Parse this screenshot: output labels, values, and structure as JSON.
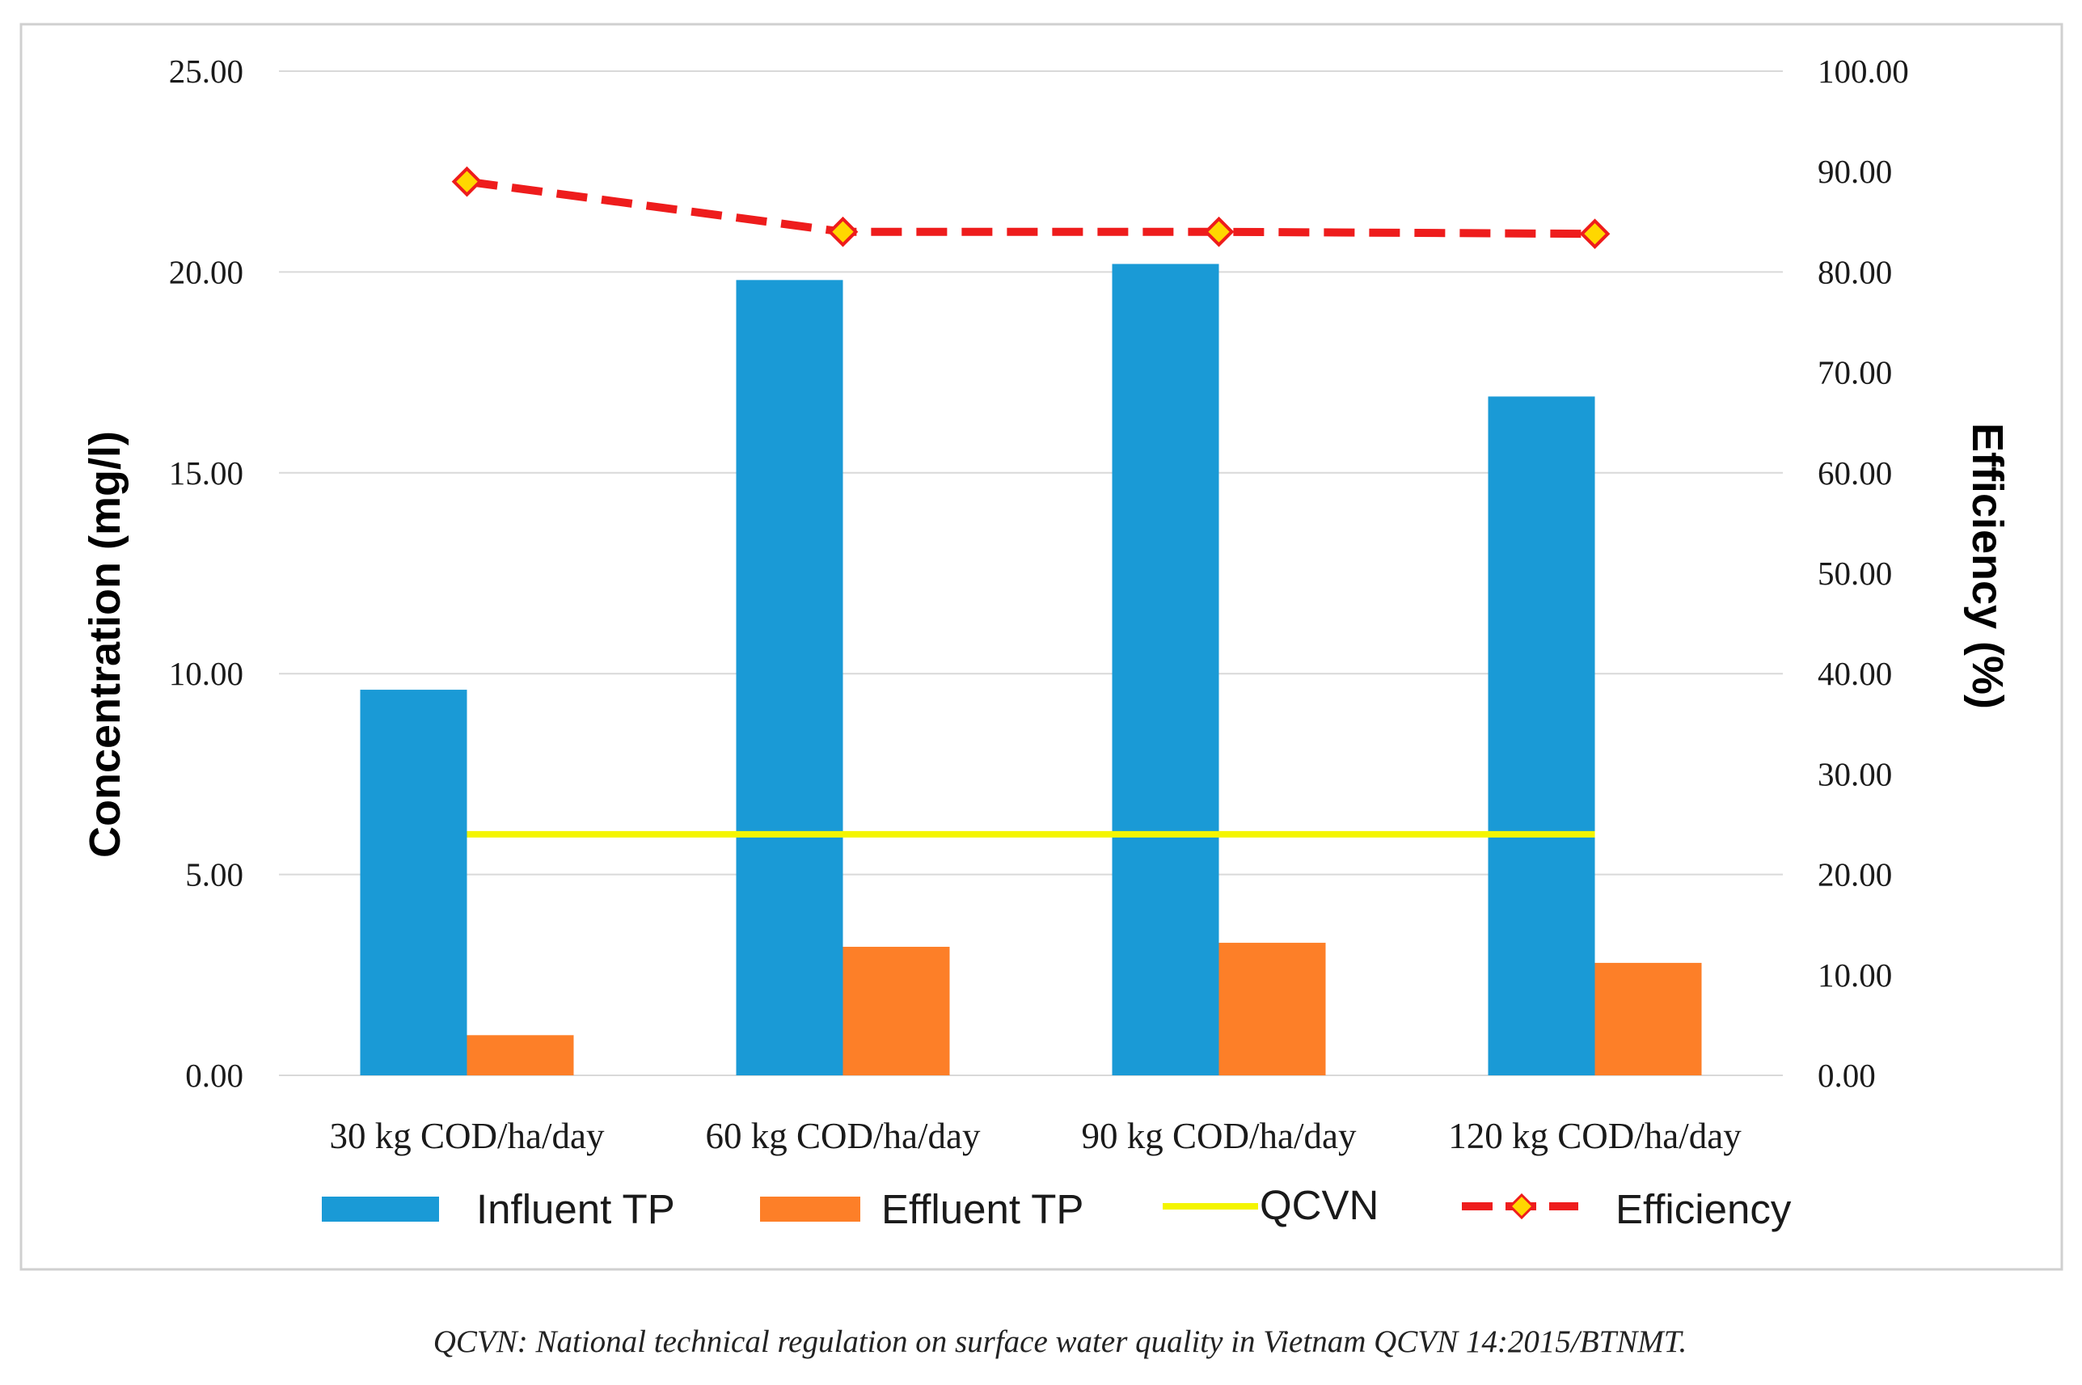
{
  "colors": {
    "influent": "#1a9ad6",
    "effluent": "#fd7f28",
    "qcvn": "#f4f500",
    "efficiency": "#ee1c1c",
    "marker": "#ffd700",
    "grid": "#d9d9d9",
    "frame": "#d0d0d0"
  },
  "chart_data": {
    "type": "bar",
    "categories": [
      "30 kg COD/ha/day",
      "60 kg COD/ha/day",
      "90 kg COD/ha/day",
      "120 kg COD/ha/day"
    ],
    "series": [
      {
        "name": "Influent TP",
        "kind": "bar",
        "axis": "left",
        "values": [
          9.6,
          19.8,
          20.2,
          16.9
        ]
      },
      {
        "name": "Effluent TP",
        "kind": "bar",
        "axis": "left",
        "values": [
          1.0,
          3.2,
          3.3,
          2.8
        ]
      },
      {
        "name": "QCVN",
        "kind": "line",
        "axis": "left",
        "values": [
          6.0,
          6.0,
          6.0,
          6.0
        ]
      },
      {
        "name": "Efficiency",
        "kind": "line-dashed-marker",
        "axis": "right",
        "values": [
          89.0,
          84.0,
          84.0,
          83.8
        ]
      }
    ],
    "ylabel": "Concentration (mg/l)",
    "y2label": "Efficiency (%)",
    "xlabel": "",
    "ylim": [
      0,
      25
    ],
    "y2lim": [
      0,
      100
    ],
    "yticks": [
      "0.00",
      "5.00",
      "10.00",
      "15.00",
      "20.00",
      "25.00"
    ],
    "y2ticks": [
      "0.00",
      "10.00",
      "20.00",
      "30.00",
      "40.00",
      "50.00",
      "60.00",
      "70.00",
      "80.00",
      "90.00",
      "100.00"
    ],
    "grid": true,
    "legend": "bottom"
  },
  "caption": "QCVN: National technical regulation on surface water quality in Vietnam QCVN 14:2015/BTNMT."
}
